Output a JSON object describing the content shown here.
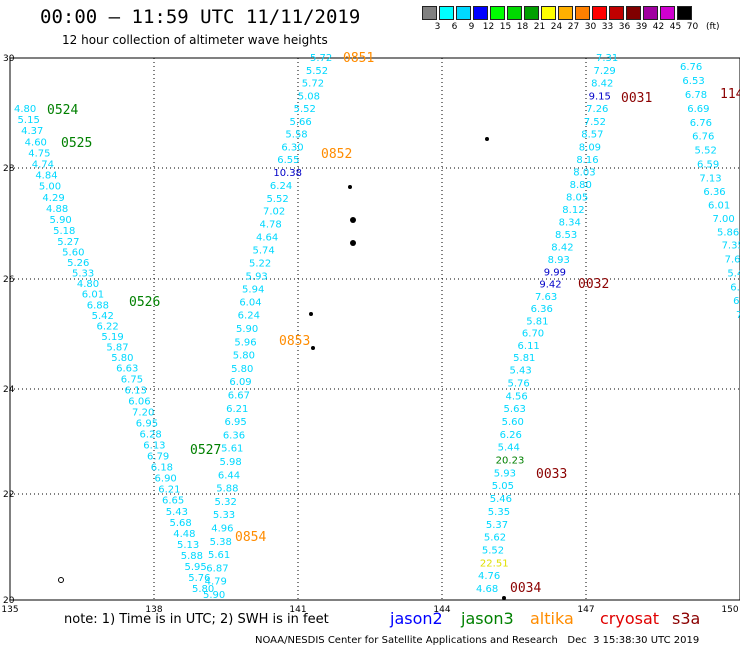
{
  "title": "00:00 – 11:59 UTC 11/11/2019",
  "subtitle": "12 hour collection of altimeter wave heights",
  "legend": {
    "colors": [
      "#808080",
      "#00ffff",
      "#00d8ff",
      "#0000ff",
      "#00ff00",
      "#00d800",
      "#00a000",
      "#ffff00",
      "#ffb000",
      "#ff8000",
      "#ff0000",
      "#c00000",
      "#800000",
      "#a000a0",
      "#d000d0",
      "#000000"
    ],
    "levels": [
      "3",
      "6",
      "9",
      "12",
      "15",
      "18",
      "21",
      "24",
      "27",
      "30",
      "33",
      "36",
      "39",
      "42",
      "45",
      "70"
    ],
    "unit": "(ft)"
  },
  "axes": {
    "lat_ticks": [
      "30",
      "28",
      "26",
      "24",
      "22",
      "20"
    ],
    "lon_ticks": [
      "135",
      "138",
      "141",
      "144",
      "147",
      "150"
    ]
  },
  "tracks": {
    "track1": [
      "4.80",
      "5.15",
      "4.37",
      "4.60",
      "4.75",
      "4.74",
      "4.84",
      "5.00",
      "4.29",
      "4.88",
      "5.90",
      "5.18",
      "5.27",
      "5.60",
      "5.26",
      "5.33",
      "4.80",
      "6.01",
      "6.88",
      "5.42",
      "6.22",
      "5.19",
      "5.87",
      "5.80",
      "6.63",
      "6.75",
      "6.13",
      "6.06",
      "7.20",
      "6.95",
      "6.28",
      "6.13",
      "6.79",
      "6.18",
      "6.90",
      "6.21",
      "6.65",
      "5.43",
      "5.68",
      "4.48",
      "5.13",
      "5.88",
      "5.95",
      "5.76",
      "5.80"
    ],
    "track2": [
      "5.72",
      "5.52",
      "5.72",
      "5.08",
      "5.52",
      "5.66",
      "5.58",
      "6.30",
      "6.55",
      "10.38",
      "6.24",
      "5.52",
      "7.02",
      "4.78",
      "4.64",
      "5.74",
      "5.22",
      "5.93",
      "5.94",
      "6.04",
      "6.24",
      "5.90",
      "5.96",
      "5.80",
      "5.80",
      "6.09",
      "6.67",
      "6.21",
      "6.95",
      "6.36",
      "5.61",
      "5.98",
      "6.44",
      "5.88",
      "5.32",
      "5.33",
      "4.96",
      "5.38",
      "5.61",
      "6.87",
      "4.79",
      "5.90"
    ],
    "track3": [
      "7.31",
      "7.29",
      "8.42",
      "9.15",
      "7.26",
      "7.52",
      "8.57",
      "8.09",
      "8.16",
      "8.03",
      "8.80",
      "8.05",
      "8.12",
      "8.34",
      "8.53",
      "8.42",
      "8.93",
      "9.99",
      "9.42",
      "7.63",
      "6.36",
      "5.81",
      "6.70",
      "6.11",
      "5.81",
      "5.43",
      "5.76",
      "4.56",
      "5.63",
      "5.60",
      "6.26",
      "5.44",
      "20.23",
      "5.93",
      "5.05",
      "5.46",
      "5.35",
      "5.37",
      "5.62",
      "5.52",
      "22.51",
      "4.76",
      "4.68"
    ],
    "track4": [
      "6.76",
      "6.53",
      "6.78",
      "6.69",
      "6.76",
      "6.76",
      "5.52",
      "6.59",
      "7.13",
      "6.36",
      "6.01",
      "7.00",
      "5.86",
      "7.35",
      "7.6",
      "5.4",
      "6.2",
      "6.0",
      "7"
    ]
  },
  "times": {
    "t0524": "0524",
    "t0525": "0525",
    "t0526": "0526",
    "t0527": "0527",
    "t0851": "0851",
    "t0852": "0852",
    "t0853": "0853",
    "t0854": "0854",
    "t0031": "0031",
    "t0032": "0032",
    "t0033": "0033",
    "t0034": "0034",
    "t114": "114"
  },
  "note": "note: 1) Time is in UTC; 2) SWH is in feet",
  "satellites": {
    "jason2": "jason2",
    "jason2_color": "#0000ff",
    "jason3": "jason3",
    "jason3_color": "#008000",
    "altika": "altika",
    "altika_color": "#ff8c00",
    "cryosat": "cryosat",
    "cryosat_color": "#e00000",
    "s3a": "s3a",
    "s3a_color": "#8b0000"
  },
  "credit": "NOAA/NESDIS Center for Satellite Applications and Research   Dec  3 15:38:30 UTC 2019"
}
